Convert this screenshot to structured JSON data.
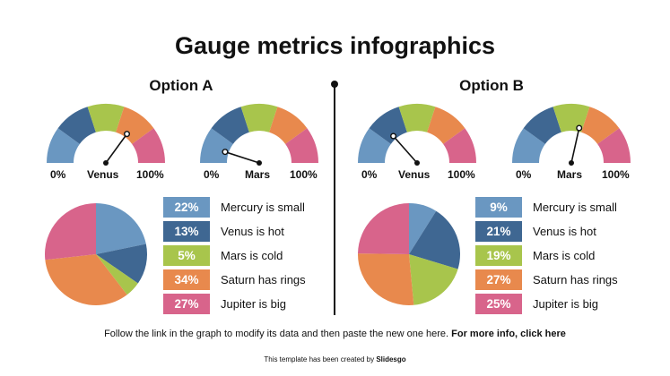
{
  "title": "Gauge metrics infographics",
  "colors": {
    "blue": "#6a97c1",
    "navy": "#3f6792",
    "green": "#a8c54c",
    "orange": "#e8894d",
    "pink": "#d8648b"
  },
  "chart_data": [
    {
      "type": "gauge",
      "option": "Option A",
      "label": "Venus",
      "min_label": "0%",
      "max_label": "100%",
      "value": 70
    },
    {
      "type": "gauge",
      "option": "Option A",
      "label": "Mars",
      "min_label": "0%",
      "max_label": "100%",
      "value": 10
    },
    {
      "type": "pie",
      "option": "Option A",
      "categories": [
        "Mercury is small",
        "Venus is hot",
        "Mars is cold",
        "Saturn has rings",
        "Jupiter is big"
      ],
      "values": [
        22,
        13,
        5,
        34,
        27
      ],
      "labels": [
        "22%",
        "13%",
        "5%",
        "34%",
        "27%"
      ],
      "colors": [
        "#6a97c1",
        "#3f6792",
        "#a8c54c",
        "#e8894d",
        "#d8648b"
      ]
    },
    {
      "type": "gauge",
      "option": "Option B",
      "label": "Venus",
      "min_label": "0%",
      "max_label": "100%",
      "value": 27
    },
    {
      "type": "gauge",
      "option": "Option B",
      "label": "Mars",
      "min_label": "0%",
      "max_label": "100%",
      "value": 57
    },
    {
      "type": "pie",
      "option": "Option B",
      "categories": [
        "Mercury is small",
        "Venus is hot",
        "Mars is cold",
        "Saturn has rings",
        "Jupiter is big"
      ],
      "values": [
        9,
        21,
        19,
        27,
        25
      ],
      "labels": [
        "9%",
        "21%",
        "19%",
        "27%",
        "25%"
      ],
      "colors": [
        "#6a97c1",
        "#3f6792",
        "#a8c54c",
        "#e8894d",
        "#d8648b"
      ]
    }
  ],
  "footer": {
    "text": "Follow the link in the graph to modify its data and then paste the new one here. ",
    "link": "For more info, click here"
  },
  "credit": {
    "text": "This template has been created by ",
    "brand": "Slidesgo"
  }
}
